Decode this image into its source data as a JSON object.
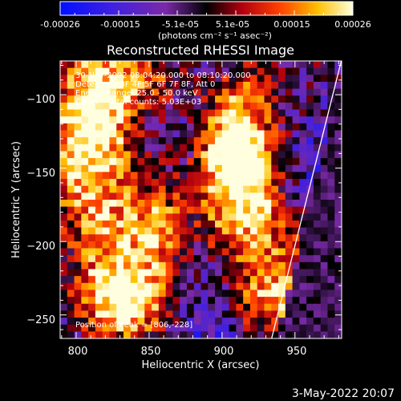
{
  "colorbar": {
    "ticks": [
      "-0.00026",
      "-0.00015",
      "-5.1e-05",
      "5.1e-05",
      "0.00015",
      "0.00026"
    ],
    "unit_label": "(photons cm⁻² s⁻¹ asec⁻²)"
  },
  "chart_data": {
    "type": "heatmap",
    "title": "Reconstructed RHESSI Image",
    "xlabel": "Heliocentric X (arcsec)",
    "ylabel": "Heliocentric Y (arcsec)",
    "xlim": [
      789,
      982
    ],
    "ylim": [
      -266,
      -77
    ],
    "xticks": [
      800,
      850,
      900,
      950
    ],
    "yticks": [
      -100,
      -150,
      -200,
      -250
    ],
    "xtick_labels": [
      "800",
      "850",
      "900",
      "950"
    ],
    "ytick_labels": [
      "−100",
      "−150",
      "−200",
      "−250"
    ],
    "value_range": [
      -0.00026,
      0.00026
    ],
    "colormap": "RHESSI blue-purple-red-yellow-white",
    "annotations": [
      "30-Nov-2002 08:04:20.000 to 08:10:20.000",
      "Detectors: 3F 4F 5F 6F 7F 8F, Att 0",
      "Energy Range: 25.0 - 50.0 keV",
      "Clean    Total counts: 5.03E+03"
    ],
    "peak_label": "Position of Peak = [806,-228]",
    "limb_line": {
      "x": [
        934,
        982
      ],
      "y": [
        -266,
        -76
      ]
    },
    "peak_position": [
      806,
      -228
    ]
  },
  "footer": {
    "timestamp": "3-May-2022 20:07"
  }
}
